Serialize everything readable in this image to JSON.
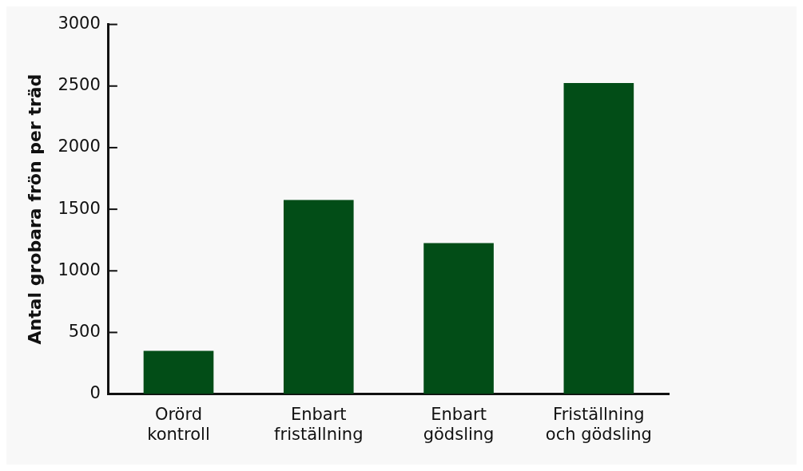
{
  "chart_data": {
    "type": "bar",
    "ylabel": "Antal grobara frön per träd",
    "categories": [
      "Orörd\nkontroll",
      "Enbart\nfriställning",
      "Enbart\ngödsling",
      "Friställning\noch gödsling"
    ],
    "values": [
      350,
      1575,
      1225,
      2525
    ],
    "color": "#024d17",
    "ylim": [
      0,
      3000
    ],
    "yticks": [
      0,
      500,
      1000,
      1500,
      2000,
      2500,
      3000
    ],
    "grid": false,
    "legend": false
  }
}
